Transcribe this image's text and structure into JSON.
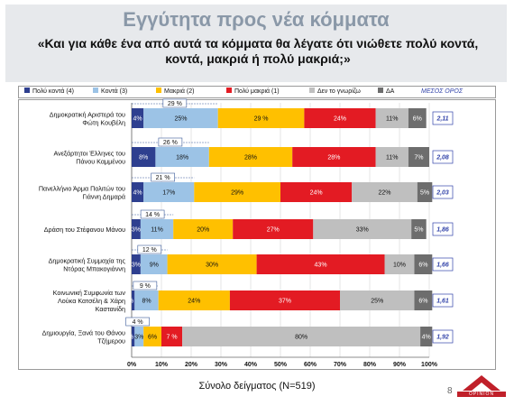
{
  "header": {
    "title": "Εγγύτητα προς νέα κόμματα",
    "question": "«Και για κάθε ένα από αυτά τα κόμματα θα λέγατε ότι νιώθετε πολύ κοντά, κοντά, μακριά ή πολύ μακριά;»"
  },
  "legend": {
    "items": [
      {
        "label": "Πολύ κοντά (4)",
        "color": "#2e3f8f"
      },
      {
        "label": "Κοντά (3)",
        "color": "#9cc3e6"
      },
      {
        "label": "Μακριά (2)",
        "color": "#ffc000"
      },
      {
        "label": "Πολύ μακριά (1)",
        "color": "#e31b23"
      },
      {
        "label": "Δεν το γνωρίζω",
        "color": "#bfbfbf"
      },
      {
        "label": "ΔΑ",
        "color": "#6d6d6d"
      }
    ],
    "average_label": "ΜΕΣΟΣ ΟΡΟΣ"
  },
  "footer": {
    "sample_label": "Σύνολο δείγματος (Ν=519)",
    "page_number": "8",
    "logo_text": "OPINION"
  },
  "chart_data": {
    "type": "bar",
    "orientation": "horizontal",
    "stacked": true,
    "xlim": [
      0,
      100
    ],
    "x_ticks": [
      "0%",
      "10%",
      "20%",
      "30%",
      "40%",
      "50%",
      "60%",
      "70%",
      "80%",
      "90%",
      "100%"
    ],
    "grid": true,
    "series_names": [
      "Πολύ κοντά (4)",
      "Κοντά (3)",
      "Μακριά (2)",
      "Πολύ μακριά (1)",
      "Δεν το γνωρίζω",
      "ΔΑ"
    ],
    "series_colors": [
      "#2e3f8f",
      "#9cc3e6",
      "#ffc000",
      "#e31b23",
      "#bfbfbf",
      "#6d6d6d"
    ],
    "categories": [
      {
        "label": [
          "Δημοκρατική Αριστερά του",
          "Φώτη Κουβέλη"
        ],
        "values": [
          4,
          25,
          29,
          24,
          11,
          6
        ],
        "labels": [
          "4%",
          "25%",
          "29 %",
          "24%",
          "11%",
          "6%"
        ],
        "close_total": "29 %",
        "average": "2,11"
      },
      {
        "label": [
          "Ανεξάρτητοι Έλληνες του",
          "Πάνου Καμμένου"
        ],
        "values": [
          8,
          18,
          28,
          28,
          11,
          7
        ],
        "labels": [
          "8%",
          "18%",
          "28%",
          "28%",
          "11%",
          "7%"
        ],
        "close_total": "26 %",
        "average": "2,08"
      },
      {
        "label": [
          "Πανελλήνιο Άρμα Πολιτών του",
          "Γιάννη Δημαρά"
        ],
        "values": [
          4,
          17,
          29,
          24,
          22,
          5
        ],
        "labels": [
          "4%",
          "17%",
          "29%",
          "24%",
          "22%",
          "5%"
        ],
        "close_total": "21 %",
        "average": "2,03"
      },
      {
        "label": [
          "Δράση του Στέφανου Μάνου"
        ],
        "values": [
          3,
          11,
          20,
          27,
          33,
          5
        ],
        "labels": [
          "3%",
          "11%",
          "20%",
          "27%",
          "33%",
          "5%"
        ],
        "close_total": "14 %",
        "average": "1,86"
      },
      {
        "label": [
          "Δημοκρατική Συμμαχία της",
          "Ντόρας Μπακογιάννη"
        ],
        "values": [
          3,
          9,
          30,
          43,
          10,
          6
        ],
        "labels": [
          "3%",
          "9%",
          "30%",
          "43%",
          "10%",
          "6%"
        ],
        "close_total": "12 %",
        "average": "1,66"
      },
      {
        "label": [
          "Κοινωνική Συμφωνία των",
          "Λούκα Κατσέλη & Χάρη",
          "Καστανίδη"
        ],
        "values": [
          1,
          8,
          24,
          37,
          25,
          6
        ],
        "labels": [
          "1%",
          "8%",
          "24%",
          "37%",
          "25%",
          "6%"
        ],
        "close_total": "9 %",
        "average": "1,61"
      },
      {
        "label": [
          "Δημιουργία, Ξανά του Θάνου",
          "Τζήμερου"
        ],
        "values": [
          1,
          3,
          6,
          7,
          80,
          4
        ],
        "labels": [
          "1%",
          "3%",
          "6%",
          "7 %",
          "80%",
          "4%"
        ],
        "close_total": "4 %",
        "average": "1,92"
      }
    ]
  }
}
